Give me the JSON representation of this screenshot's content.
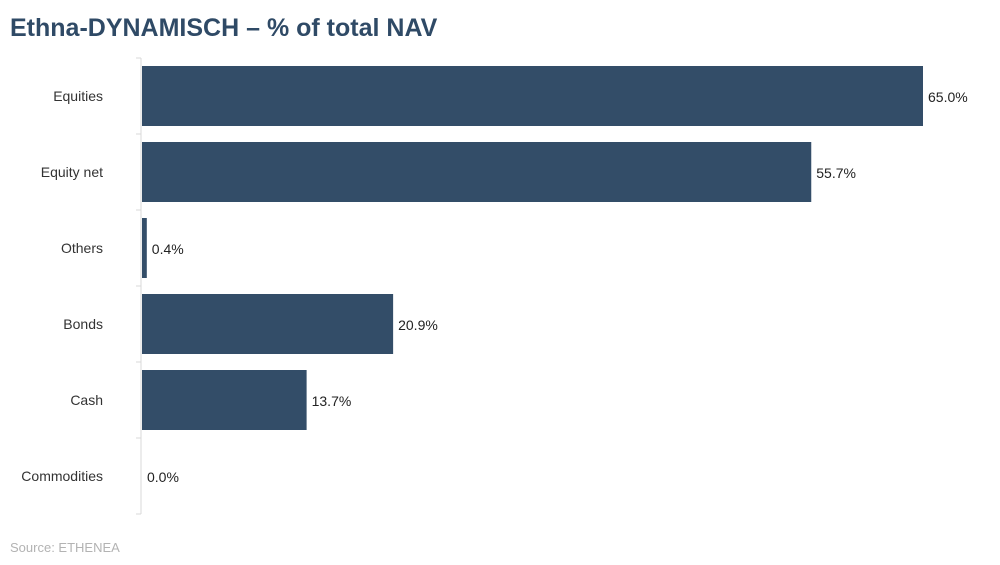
{
  "title": "Ethna-DYNAMISCH – % of total NAV",
  "source": "Source: ETHENEA",
  "colors": {
    "bar": "#334d68",
    "title": "#2f4a66",
    "axis": "#d9d9d9"
  },
  "chart_data": {
    "type": "bar",
    "orientation": "horizontal",
    "categories": [
      "Equities",
      "Equity net",
      "Others",
      "Bonds",
      "Cash",
      "Commodities"
    ],
    "values": [
      65.0,
      55.7,
      0.4,
      20.9,
      13.7,
      0.0
    ],
    "value_labels": [
      "65.0%",
      "55.7%",
      "0.4%",
      "20.9%",
      "13.7%",
      "0.0%"
    ],
    "xlim": [
      0,
      65.0
    ],
    "grid": false,
    "legend": "none"
  }
}
